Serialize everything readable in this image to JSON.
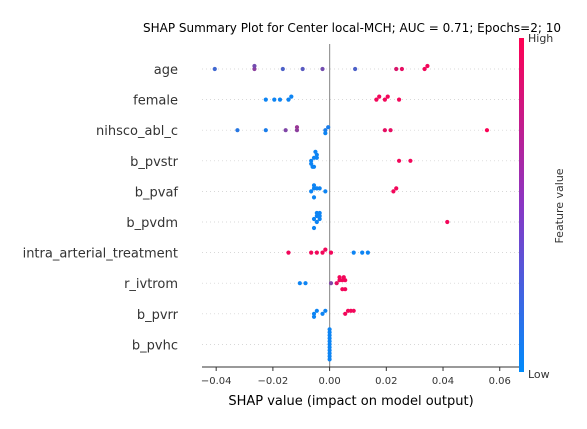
{
  "chart_data": {
    "type": "scatter",
    "title": "SHAP Summary Plot for Center local-MCH; AUC = 0.71; Epochs=2; 10",
    "xlabel": "SHAP value (impact on model output)",
    "xlim": [
      -0.045,
      0.0675
    ],
    "xticks": [
      -0.04,
      -0.02,
      0.0,
      0.02,
      0.04,
      0.06
    ],
    "xtick_labels": [
      "−0.04",
      "−0.02",
      "0.00",
      "0.02",
      "0.04",
      "0.06"
    ],
    "colorbar": {
      "label": "Feature value",
      "high": "High",
      "low": "Low",
      "low_color": "#008bfb",
      "high_color": "#ff0052"
    },
    "features": [
      {
        "name": "age",
        "points": [
          [
            -0.0405,
            0.25
          ],
          [
            -0.0265,
            0.55
          ],
          [
            -0.0265,
            0.45
          ],
          [
            -0.0165,
            0.3
          ],
          [
            -0.0095,
            0.35
          ],
          [
            -0.0025,
            0.45
          ],
          [
            0.009,
            0.3
          ],
          [
            0.0235,
            0.85
          ],
          [
            0.0255,
            0.9
          ],
          [
            0.0335,
            0.95
          ],
          [
            0.0345,
            0.95
          ]
        ]
      },
      {
        "name": "female",
        "points": [
          [
            -0.0225,
            0.05
          ],
          [
            -0.0195,
            0.05
          ],
          [
            -0.0175,
            0.05
          ],
          [
            -0.0145,
            0.05
          ],
          [
            -0.0135,
            0.05
          ],
          [
            0.0165,
            0.95
          ],
          [
            0.0175,
            0.95
          ],
          [
            0.0195,
            0.95
          ],
          [
            0.0205,
            0.95
          ],
          [
            0.0245,
            0.95
          ]
        ]
      },
      {
        "name": "nihsco_abl_c",
        "points": [
          [
            -0.0325,
            0.15
          ],
          [
            -0.0225,
            0.1
          ],
          [
            -0.0155,
            0.5
          ],
          [
            -0.0115,
            0.55
          ],
          [
            -0.0115,
            0.6
          ],
          [
            -0.0015,
            0.1
          ],
          [
            -0.0005,
            0.1
          ],
          [
            -0.0015,
            0.05
          ],
          [
            0.0195,
            0.9
          ],
          [
            0.0215,
            0.9
          ],
          [
            0.0555,
            0.98
          ]
        ]
      },
      {
        "name": "b_pvstr",
        "points": [
          [
            -0.0065,
            0.05
          ],
          [
            -0.0055,
            0.05
          ],
          [
            -0.0045,
            0.05
          ],
          [
            -0.0065,
            0.05
          ],
          [
            -0.0055,
            0.05
          ],
          [
            -0.0045,
            0.05
          ],
          [
            -0.006,
            0.05
          ],
          [
            -0.005,
            0.05
          ],
          [
            0.0245,
            0.95
          ],
          [
            0.0285,
            0.95
          ]
        ]
      },
      {
        "name": "b_pvaf",
        "points": [
          [
            -0.0065,
            0.05
          ],
          [
            -0.0055,
            0.05
          ],
          [
            -0.0045,
            0.05
          ],
          [
            -0.0035,
            0.05
          ],
          [
            -0.0015,
            0.05
          ],
          [
            -0.0055,
            0.05
          ],
          [
            -0.0055,
            0.05
          ],
          [
            0.0225,
            0.95
          ],
          [
            0.0235,
            0.95
          ]
        ]
      },
      {
        "name": "b_pvdm",
        "points": [
          [
            -0.0045,
            0.05
          ],
          [
            -0.0035,
            0.05
          ],
          [
            -0.0055,
            0.05
          ],
          [
            -0.0045,
            0.05
          ],
          [
            -0.0035,
            0.05
          ],
          [
            -0.0045,
            0.05
          ],
          [
            -0.0035,
            0.05
          ],
          [
            -0.0055,
            0.05
          ],
          [
            0.0415,
            0.95
          ]
        ]
      },
      {
        "name": "intra_arterial_treatment",
        "points": [
          [
            -0.0145,
            0.95
          ],
          [
            -0.0065,
            0.95
          ],
          [
            -0.0045,
            0.95
          ],
          [
            -0.0025,
            0.95
          ],
          [
            -0.0015,
            0.95
          ],
          [
            0.0005,
            0.95
          ],
          [
            0.0085,
            0.05
          ],
          [
            0.0115,
            0.05
          ],
          [
            0.0135,
            0.05
          ]
        ]
      },
      {
        "name": "r_ivtrom",
        "points": [
          [
            -0.0105,
            0.05
          ],
          [
            -0.0085,
            0.05
          ],
          [
            0.0005,
            0.5
          ],
          [
            0.0025,
            0.9
          ],
          [
            0.0035,
            0.95
          ],
          [
            0.0045,
            0.95
          ],
          [
            0.0055,
            0.95
          ],
          [
            0.0035,
            0.95
          ],
          [
            0.0045,
            0.95
          ],
          [
            0.005,
            0.95
          ],
          [
            0.0055,
            0.95
          ]
        ]
      },
      {
        "name": "b_pvrr",
        "points": [
          [
            -0.0055,
            0.05
          ],
          [
            -0.0045,
            0.05
          ],
          [
            -0.0025,
            0.05
          ],
          [
            -0.0015,
            0.05
          ],
          [
            -0.0055,
            0.05
          ],
          [
            0.0055,
            0.95
          ],
          [
            0.0065,
            0.95
          ],
          [
            0.0075,
            0.95
          ],
          [
            0.0085,
            0.95
          ]
        ]
      },
      {
        "name": "b_pvhc",
        "points": [
          [
            0.0,
            0.05
          ],
          [
            0.0,
            0.05
          ],
          [
            0.0,
            0.05
          ],
          [
            0.0,
            0.05
          ],
          [
            0.0,
            0.05
          ],
          [
            0.0,
            0.05
          ],
          [
            0.0,
            0.05
          ],
          [
            0.0,
            0.05
          ],
          [
            0.0,
            0.05
          ],
          [
            0.0,
            0.05
          ],
          [
            0.0,
            0.05
          ]
        ]
      }
    ]
  }
}
